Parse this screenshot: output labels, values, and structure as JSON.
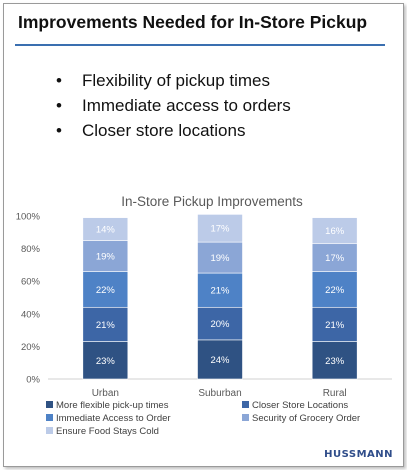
{
  "slide": {
    "title": "Improvements Needed for In-Store Pickup",
    "bullets": [
      "Flexibility of pickup times",
      "Immediate access to orders",
      "Closer store locations"
    ],
    "brand": "HUSSMANN"
  },
  "chart_data": {
    "type": "bar",
    "stacked": true,
    "title": "In-Store Pickup Improvements",
    "categories": [
      "Urban",
      "Suburban",
      "Rural"
    ],
    "yticks": [
      "0%",
      "20%",
      "40%",
      "60%",
      "80%",
      "100%"
    ],
    "ylim": [
      0,
      100
    ],
    "grid": false,
    "legend_position": "bottom",
    "series": [
      {
        "name": "More flexible pick-up times",
        "values": [
          23,
          24,
          23
        ],
        "color": "#2f5283"
      },
      {
        "name": "Closer Store Locations",
        "values": [
          21,
          20,
          21
        ],
        "color": "#3d66a6"
      },
      {
        "name": "Immediate Access to Order",
        "values": [
          22,
          21,
          22
        ],
        "color": "#4e82c6"
      },
      {
        "name": "Security of Grocery Order",
        "values": [
          19,
          19,
          17
        ],
        "color": "#8ba6d6"
      },
      {
        "name": "Ensure Food Stays Cold",
        "values": [
          14,
          17,
          16
        ],
        "color": "#bccbe8"
      }
    ],
    "data_labels": [
      [
        "23%",
        "24%",
        "23%"
      ],
      [
        "21%",
        "20%",
        "21%"
      ],
      [
        "22%",
        "21%",
        "22%"
      ],
      [
        "19%",
        "19%",
        "17%"
      ],
      [
        "14%",
        "17%",
        "16%"
      ]
    ]
  }
}
